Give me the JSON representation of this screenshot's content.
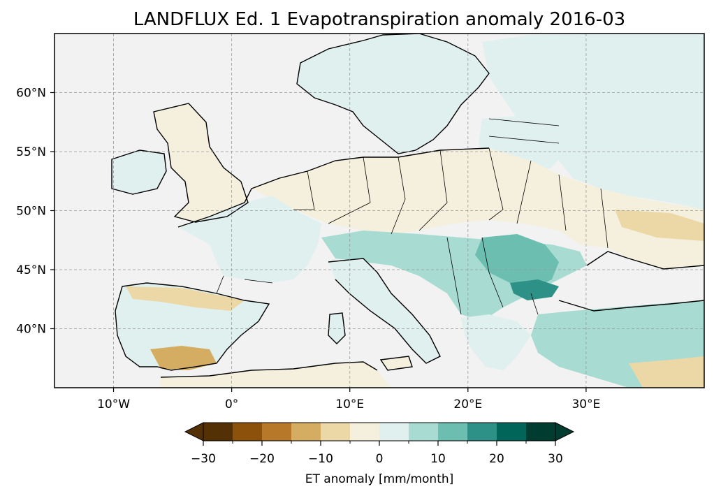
{
  "figure": {
    "title": "LANDFLUX Ed. 1 Evapotranspiration anomaly 2016-03"
  },
  "map": {
    "projection": "PlateCarree",
    "extent": {
      "lon": [
        -15,
        40
      ],
      "lat": [
        35,
        65
      ]
    },
    "background_color": "#f2f2f2",
    "gridlines": true,
    "coastlines": true,
    "borders": true,
    "xticks": [
      {
        "value": -10,
        "label": "10°W"
      },
      {
        "value": 0,
        "label": "0°"
      },
      {
        "value": 10,
        "label": "10°E"
      },
      {
        "value": 20,
        "label": "20°E"
      },
      {
        "value": 30,
        "label": "30°E"
      }
    ],
    "yticks": [
      {
        "value": 40,
        "label": "40°N"
      },
      {
        "value": 45,
        "label": "45°N"
      },
      {
        "value": 50,
        "label": "50°N"
      },
      {
        "value": 55,
        "label": "55°N"
      },
      {
        "value": 60,
        "label": "60°N"
      }
    ]
  },
  "colorbar": {
    "label": "ET anomaly [mm/month]",
    "levels": [
      -30,
      -25,
      -20,
      -15,
      -10,
      -5,
      0,
      5,
      10,
      15,
      20,
      25,
      30
    ],
    "tick_labels": [
      {
        "value": -30,
        "label": "−30"
      },
      {
        "value": -20,
        "label": "−20"
      },
      {
        "value": -10,
        "label": "−10"
      },
      {
        "value": 0,
        "label": "0"
      },
      {
        "value": 10,
        "label": "10"
      },
      {
        "value": 20,
        "label": "20"
      },
      {
        "value": 30,
        "label": "30"
      }
    ],
    "colors": [
      "#543005",
      "#8c510a",
      "#b8782a",
      "#d4ad62",
      "#ecd8a6",
      "#f5f0dd",
      "#e0f0ee",
      "#a8dbd2",
      "#6cbfb0",
      "#2e9188",
      "#016659",
      "#003c30"
    ],
    "extend": "both"
  }
}
